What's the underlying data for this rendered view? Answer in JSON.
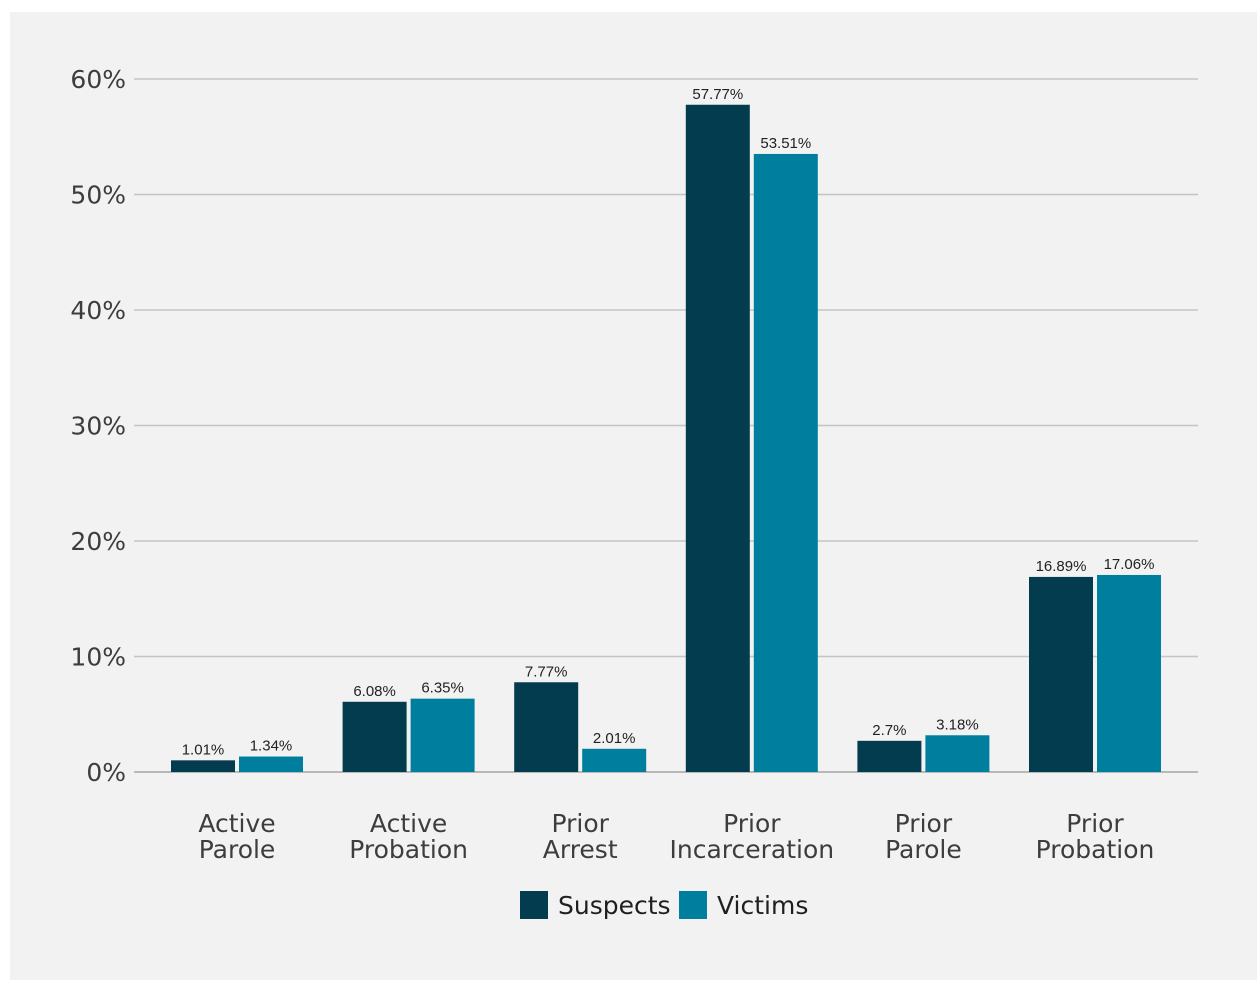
{
  "chart_data": {
    "type": "bar",
    "categories": [
      [
        "Active",
        "Parole"
      ],
      [
        "Active",
        "Probation"
      ],
      [
        "Prior",
        "Arrest"
      ],
      [
        "Prior",
        "Incarceration"
      ],
      [
        "Prior",
        "Parole"
      ],
      [
        "Prior",
        "Probation"
      ]
    ],
    "series": [
      {
        "name": "Suspects",
        "color": "#033c4f",
        "values": [
          1.01,
          6.08,
          7.77,
          57.77,
          2.7,
          16.89
        ],
        "labels": [
          "1.01%",
          "6.08%",
          "7.77%",
          "57.77%",
          "2.7%",
          "16.89%"
        ]
      },
      {
        "name": "Victims",
        "color": "#007e9e",
        "values": [
          1.34,
          6.35,
          2.01,
          53.51,
          3.18,
          17.06
        ],
        "labels": [
          "1.34%",
          "6.35%",
          "2.01%",
          "53.51%",
          "3.18%",
          "17.06%"
        ]
      }
    ],
    "y_ticks": [
      0,
      10,
      20,
      30,
      40,
      50,
      60
    ],
    "y_tick_labels": [
      "0%",
      "10%",
      "20%",
      "30%",
      "40%",
      "50%",
      "60%"
    ],
    "ylim": [
      0,
      60
    ],
    "grid": true,
    "legend_placement": "bottom-center",
    "background": "#f2f2f2"
  }
}
